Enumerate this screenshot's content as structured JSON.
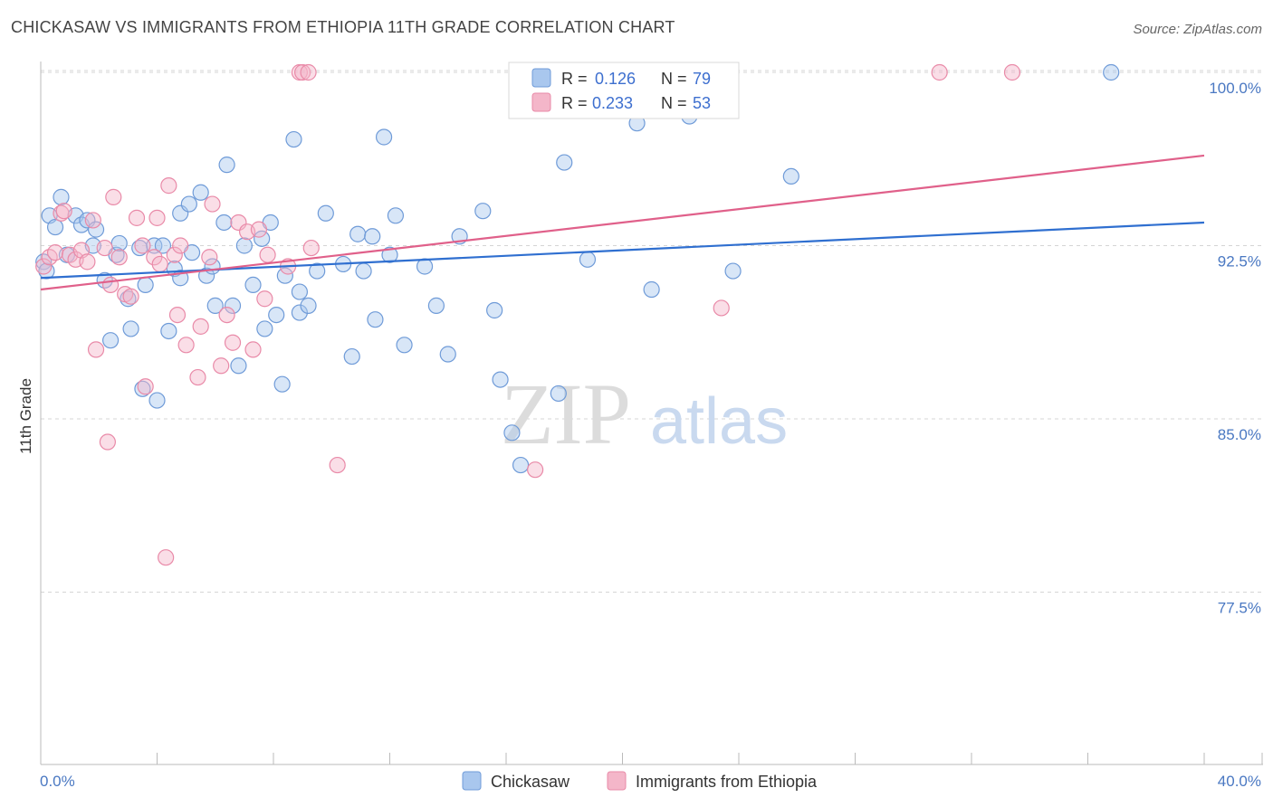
{
  "header": {
    "title": "CHICKASAW VS IMMIGRANTS FROM ETHIOPIA 11TH GRADE CORRELATION CHART",
    "source": "Source: ZipAtlas.com"
  },
  "watermark": {
    "zip": "ZIP",
    "atlas": "atlas"
  },
  "colors": {
    "blue_fill": "#a9c7ee",
    "blue_stroke": "#6f9bd8",
    "blue_line": "#2f6fd0",
    "pink_fill": "#f4b6c9",
    "pink_stroke": "#e98aa8",
    "pink_line": "#e0608a",
    "grid": "#d5d5d5",
    "axis": "#bbbbbb"
  },
  "legend": {
    "r_label": "R =",
    "n_label": "N =",
    "rows": [
      {
        "r": "0.126",
        "n": "79"
      },
      {
        "r": "0.233",
        "n": "53"
      }
    ]
  },
  "chart_data": {
    "type": "scatter",
    "title": "CHICKASAW VS IMMIGRANTS FROM ETHIOPIA 11TH GRADE CORRELATION CHART",
    "xlabel": "",
    "ylabel": "11th Grade",
    "xlim": [
      0,
      40
    ],
    "ylim": [
      70,
      101
    ],
    "x_tick_labels": [
      "0.0%",
      "40.0%"
    ],
    "y_ticks": [
      77.5,
      85.0,
      92.5,
      100.0
    ],
    "y_tick_labels": [
      "77.5%",
      "85.0%",
      "92.5%",
      "100.0%"
    ],
    "series": [
      {
        "name": "Chickasaw",
        "color": "blue",
        "trend": {
          "x0": 0,
          "y0": 91.1,
          "x1": 40,
          "y1": 93.5
        },
        "points": [
          [
            0.1,
            91.8
          ],
          [
            0.2,
            91.4
          ],
          [
            0.3,
            93.8
          ],
          [
            0.5,
            93.3
          ],
          [
            0.7,
            94.6
          ],
          [
            0.9,
            92.1
          ],
          [
            1.2,
            93.8
          ],
          [
            1.4,
            93.4
          ],
          [
            1.6,
            93.6
          ],
          [
            1.8,
            92.5
          ],
          [
            1.9,
            93.2
          ],
          [
            2.2,
            91.0
          ],
          [
            2.4,
            88.4
          ],
          [
            2.6,
            92.1
          ],
          [
            2.7,
            92.6
          ],
          [
            3.0,
            90.2
          ],
          [
            3.1,
            88.9
          ],
          [
            3.4,
            92.4
          ],
          [
            3.5,
            86.3
          ],
          [
            3.6,
            90.8
          ],
          [
            3.9,
            92.5
          ],
          [
            4.0,
            85.8
          ],
          [
            4.2,
            92.5
          ],
          [
            4.4,
            88.8
          ],
          [
            4.6,
            91.5
          ],
          [
            4.8,
            91.1
          ],
          [
            4.8,
            93.9
          ],
          [
            5.1,
            94.3
          ],
          [
            5.2,
            92.2
          ],
          [
            5.5,
            94.8
          ],
          [
            5.7,
            91.2
          ],
          [
            5.9,
            91.6
          ],
          [
            6.0,
            89.9
          ],
          [
            6.3,
            93.5
          ],
          [
            6.4,
            96.0
          ],
          [
            6.6,
            89.9
          ],
          [
            6.8,
            87.3
          ],
          [
            7.0,
            92.5
          ],
          [
            7.3,
            90.8
          ],
          [
            7.6,
            92.8
          ],
          [
            7.7,
            88.9
          ],
          [
            7.9,
            93.5
          ],
          [
            8.1,
            89.5
          ],
          [
            8.3,
            86.5
          ],
          [
            8.4,
            91.2
          ],
          [
            8.7,
            97.1
          ],
          [
            8.9,
            90.5
          ],
          [
            8.9,
            89.6
          ],
          [
            9.2,
            89.9
          ],
          [
            9.5,
            91.4
          ],
          [
            9.8,
            93.9
          ],
          [
            10.4,
            91.7
          ],
          [
            10.7,
            87.7
          ],
          [
            10.9,
            93.0
          ],
          [
            11.1,
            91.4
          ],
          [
            11.4,
            92.9
          ],
          [
            11.5,
            89.3
          ],
          [
            11.8,
            97.2
          ],
          [
            12.0,
            92.1
          ],
          [
            12.2,
            93.8
          ],
          [
            12.5,
            88.2
          ],
          [
            13.2,
            91.6
          ],
          [
            13.6,
            89.9
          ],
          [
            14.0,
            87.8
          ],
          [
            14.4,
            92.9
          ],
          [
            15.2,
            94.0
          ],
          [
            15.6,
            89.7
          ],
          [
            15.8,
            86.7
          ],
          [
            16.2,
            84.4
          ],
          [
            16.5,
            83.0
          ],
          [
            17.8,
            86.1
          ],
          [
            18.0,
            96.1
          ],
          [
            18.8,
            91.9
          ],
          [
            20.5,
            97.8
          ],
          [
            21.0,
            90.6
          ],
          [
            22.3,
            98.1
          ],
          [
            23.8,
            91.4
          ],
          [
            25.8,
            95.5
          ],
          [
            36.8,
            100.0
          ]
        ]
      },
      {
        "name": "Immigrants from Ethiopia",
        "color": "pink",
        "trend": {
          "x0": 0,
          "y0": 90.6,
          "x1": 40,
          "y1": 96.4
        },
        "points": [
          [
            0.1,
            91.6
          ],
          [
            0.3,
            92.0
          ],
          [
            0.5,
            92.2
          ],
          [
            0.7,
            93.9
          ],
          [
            0.8,
            94.0
          ],
          [
            1.0,
            92.1
          ],
          [
            1.2,
            91.9
          ],
          [
            1.4,
            92.3
          ],
          [
            1.6,
            91.8
          ],
          [
            1.8,
            93.6
          ],
          [
            1.9,
            88.0
          ],
          [
            2.2,
            92.4
          ],
          [
            2.3,
            84.0
          ],
          [
            2.4,
            90.8
          ],
          [
            2.5,
            94.6
          ],
          [
            2.7,
            92.0
          ],
          [
            2.9,
            90.4
          ],
          [
            3.1,
            90.3
          ],
          [
            3.3,
            93.7
          ],
          [
            3.5,
            92.5
          ],
          [
            3.6,
            86.4
          ],
          [
            3.9,
            92.0
          ],
          [
            4.0,
            93.7
          ],
          [
            4.1,
            91.7
          ],
          [
            4.3,
            79.0
          ],
          [
            4.4,
            95.1
          ],
          [
            4.6,
            92.1
          ],
          [
            4.7,
            89.5
          ],
          [
            4.8,
            92.5
          ],
          [
            5.0,
            88.2
          ],
          [
            5.4,
            86.8
          ],
          [
            5.5,
            89.0
          ],
          [
            5.8,
            92.0
          ],
          [
            5.9,
            94.3
          ],
          [
            6.2,
            87.3
          ],
          [
            6.4,
            89.5
          ],
          [
            6.6,
            88.3
          ],
          [
            6.8,
            93.5
          ],
          [
            7.1,
            93.1
          ],
          [
            7.3,
            88.0
          ],
          [
            7.5,
            93.2
          ],
          [
            7.7,
            90.2
          ],
          [
            7.8,
            92.1
          ],
          [
            8.5,
            91.6
          ],
          [
            8.9,
            100.0
          ],
          [
            9.0,
            100.0
          ],
          [
            9.2,
            100.0
          ],
          [
            9.3,
            92.4
          ],
          [
            10.2,
            83.0
          ],
          [
            17.0,
            82.8
          ],
          [
            23.4,
            89.8
          ],
          [
            30.9,
            100.0
          ],
          [
            33.4,
            100.0
          ]
        ]
      }
    ],
    "legend_position": "top-center"
  },
  "bottom_legend": [
    "Chickasaw",
    "Immigrants from Ethiopia"
  ]
}
